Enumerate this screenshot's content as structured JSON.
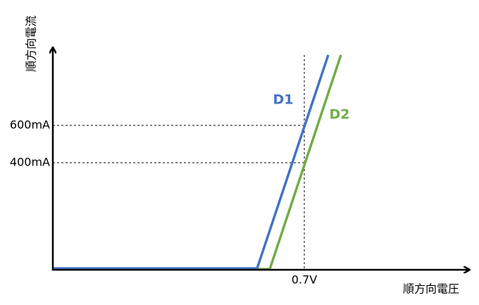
{
  "y_axis_label": "順方向電流",
  "x_axis_label": "順方向電圧",
  "y_labels": [
    "600mA",
    "400mA"
  ],
  "x_label": "0.7V",
  "curves": [
    "D1",
    "D2"
  ]
}
